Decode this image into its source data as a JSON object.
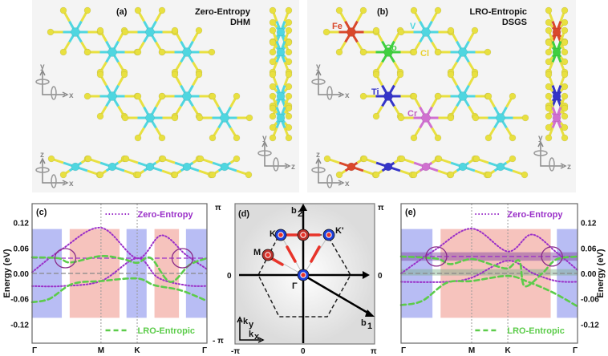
{
  "panel_a": {
    "label": "(a)",
    "title1": "Zero-Entropy",
    "title2": "DHM",
    "metal_color": "#4fd6e0",
    "cl_color": "#e8e040",
    "metals": [
      "cyan",
      "cyan",
      "cyan",
      "cyan",
      "cyan",
      "cyan",
      "cyan",
      "cyan"
    ],
    "chain": [
      "cyan",
      "cyan",
      "cyan",
      "cyan",
      "cyan"
    ],
    "side": [
      "cyan",
      "cyan",
      "cyan",
      "cyan"
    ],
    "axes": {
      "y": "y",
      "x": "x",
      "z": "z"
    }
  },
  "panel_b": {
    "label": "(b)",
    "title1": "LRO-Entropic",
    "title2": "DSGS",
    "metals": [
      "Fe",
      "Co",
      "V",
      "cyan",
      "Ti",
      "cyan",
      "Cr",
      "cyan"
    ],
    "chain": [
      "Fe",
      "Ti",
      "Cr",
      "cyan",
      "cyan"
    ],
    "side": [
      "Fe",
      "Co",
      "Ti",
      "Cr"
    ],
    "element_labels": {
      "Fe": "Fe",
      "Co": "Co",
      "V": "V",
      "Cl": "Cl",
      "Ti": "Ti",
      "Cr": "Cr"
    },
    "colors": {
      "Fe": "#d9482b",
      "Co": "#3fcf3f",
      "V": "#4fd6e0",
      "cyan": "#4fd6e0",
      "Ti": "#3434c8",
      "Cr": "#d070d0",
      "Cl": "#e8e040"
    }
  },
  "chart_data": [
    {
      "panel": "(c)",
      "type": "line",
      "ylabel": "Energy (eV)",
      "ylim": [
        -0.165,
        0.165
      ],
      "yticks": [
        "0.12",
        "0.06",
        "0.00",
        "-0.06",
        "-0.12"
      ],
      "ytick_values": [
        0.12,
        0.06,
        0.0,
        -0.06,
        -0.12
      ],
      "kpoints": [
        {
          "label": "Γ",
          "pos": 0
        },
        {
          "label": "M",
          "pos": 0.394
        },
        {
          "label": "K",
          "pos": 0.601
        },
        {
          "label": "Γ",
          "pos": 1
        }
      ],
      "shaded": [
        {
          "color": "blue",
          "from": 0,
          "to": 0.17
        },
        {
          "color": "red",
          "from": 0.215,
          "to": 0.5
        },
        {
          "color": "blue",
          "from": 0.54,
          "to": 0.655
        },
        {
          "color": "red",
          "from": 0.7,
          "to": 0.84
        },
        {
          "color": "blue",
          "from": 0.88,
          "to": 1
        }
      ],
      "shade_energy": [
        -0.105,
        0.105
      ],
      "legend": [
        {
          "name": "Zero-Entropy",
          "style": "dotted",
          "color": "#9a2fc8"
        },
        {
          "name": "LRO-Entropic",
          "style": "dashed",
          "color": "#5ccc4a"
        }
      ],
      "series": [
        {
          "group": "Zero-Entropy",
          "points": [
            [
              0,
              0.003
            ],
            [
              0.17,
              0.057
            ],
            [
              0.394,
              0.108
            ],
            [
              0.601,
              0.036
            ],
            [
              0.74,
              0.09
            ],
            [
              0.88,
              0.044
            ],
            [
              1,
              0.01
            ]
          ]
        },
        {
          "group": "Zero-Entropy",
          "points": [
            [
              0,
              -0.03
            ],
            [
              0.17,
              -0.03
            ],
            [
              0.394,
              -0.018
            ],
            [
              0.601,
              0.036
            ],
            [
              0.72,
              -0.01
            ],
            [
              0.88,
              -0.028
            ],
            [
              1,
              -0.03
            ]
          ]
        },
        {
          "group": "LRO-Entropic",
          "points": [
            [
              0,
              0.038
            ],
            [
              0.15,
              0.036
            ],
            [
              0.22,
              0.026
            ],
            [
              0.394,
              0.041
            ],
            [
              0.52,
              0.034
            ],
            [
              0.601,
              0.025
            ],
            [
              0.68,
              0.036
            ],
            [
              0.79,
              -0.02
            ],
            [
              0.9,
              0.02
            ],
            [
              1,
              0.036
            ]
          ]
        },
        {
          "group": "LRO-Entropic",
          "points": [
            [
              0,
              -0.068
            ],
            [
              0.1,
              -0.06
            ],
            [
              0.23,
              -0.025
            ],
            [
              0.394,
              -0.018
            ],
            [
              0.601,
              -0.012
            ],
            [
              0.7,
              -0.028
            ],
            [
              0.85,
              -0.04
            ],
            [
              1,
              -0.065
            ]
          ]
        }
      ],
      "hlines": [
        {
          "energy": 0.036,
          "color": "#9a2fc8"
        },
        {
          "energy": 0.0,
          "color": "#888888"
        }
      ],
      "bands": [],
      "circles": [
        [
          0.19,
          0.036
        ],
        [
          0.86,
          0.036
        ]
      ]
    },
    {
      "panel": "(e)",
      "type": "line",
      "ylabel": "Energy (eV)",
      "ylim": [
        -0.165,
        0.165
      ],
      "yticks": [
        "0.12",
        "0.06",
        "0.00",
        "-0.06",
        "-0.12"
      ],
      "ytick_values": [
        0.12,
        0.06,
        0.0,
        -0.06,
        -0.12
      ],
      "kpoints": [
        {
          "label": "Γ",
          "pos": 0
        },
        {
          "label": "M",
          "pos": 0.4
        },
        {
          "label": "K",
          "pos": 0.605
        },
        {
          "label": "Γ",
          "pos": 1
        }
      ],
      "shaded": [
        {
          "color": "blue",
          "from": 0,
          "to": 0.178
        },
        {
          "color": "red",
          "from": 0.224,
          "to": 0.848
        },
        {
          "color": "blue",
          "from": 0.883,
          "to": 1
        }
      ],
      "shade_energy": [
        -0.105,
        0.105
      ],
      "legend": [
        {
          "name": "Zero-Entropy",
          "style": "dotted",
          "color": "#9a2fc8"
        },
        {
          "name": "LRO-Entropic",
          "style": "dashed",
          "color": "#5ccc4a"
        }
      ],
      "series": [
        {
          "group": "Zero-Entropy",
          "points": [
            [
              0,
              0.0
            ],
            [
              0.19,
              0.055
            ],
            [
              0.4,
              0.106
            ],
            [
              0.605,
              0.052
            ],
            [
              0.74,
              0.092
            ],
            [
              0.88,
              0.05
            ],
            [
              1,
              0.008
            ]
          ]
        },
        {
          "group": "Zero-Entropy",
          "points": [
            [
              0,
              -0.02
            ],
            [
              0.25,
              -0.02
            ],
            [
              0.4,
              -0.01
            ],
            [
              0.605,
              0.03
            ],
            [
              0.75,
              0.0
            ],
            [
              0.88,
              -0.018
            ],
            [
              1,
              -0.02
            ]
          ]
        },
        {
          "group": "LRO-Entropic",
          "points": [
            [
              0,
              0.04
            ],
            [
              0.2,
              0.035
            ],
            [
              0.28,
              0.022
            ],
            [
              0.4,
              0.034
            ],
            [
              0.52,
              0.02
            ],
            [
              0.605,
              0.012
            ],
            [
              0.67,
              0.03
            ],
            [
              0.7,
              -0.03
            ],
            [
              0.8,
              0.0
            ],
            [
              0.88,
              0.033
            ],
            [
              1,
              0.04
            ]
          ]
        },
        {
          "group": "LRO-Entropic",
          "points": [
            [
              0,
              -0.075
            ],
            [
              0.12,
              -0.065
            ],
            [
              0.26,
              -0.022
            ],
            [
              0.4,
              -0.018
            ],
            [
              0.605,
              -0.006
            ],
            [
              0.72,
              -0.02
            ],
            [
              0.86,
              -0.045
            ],
            [
              1,
              -0.078
            ]
          ]
        }
      ],
      "hlines": [
        {
          "energy": 0.04,
          "color": "#9a2fc8"
        },
        {
          "energy": 0.0,
          "color": "#888888"
        }
      ],
      "bands": [
        {
          "from": 0.03,
          "to": 0.05,
          "color": "#7a3fa0"
        },
        {
          "from": -0.005,
          "to": 0.01,
          "color": "#7ab08a"
        }
      ],
      "circles": [
        [
          0.2,
          0.04
        ],
        [
          0.855,
          0.04
        ]
      ]
    }
  ],
  "panel_d": {
    "label": "(d)",
    "b1": "b",
    "b1_sub": "1",
    "b2": "b",
    "b2_sub": "2",
    "points": {
      "K": "K",
      "Kp": "K'",
      "M": "M",
      "G": "Γ"
    },
    "ticks": {
      "pi": "π",
      "zero": "0",
      "neg_pi_left": "- π",
      "neg_pi": "-π"
    },
    "kx": "k",
    "kx_sub": "x",
    "ky": "k",
    "ky_sub": "y"
  }
}
